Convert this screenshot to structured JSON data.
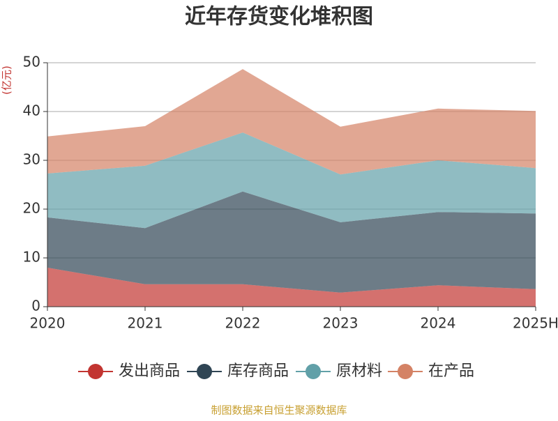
{
  "chart_data": {
    "type": "stacked-area",
    "title": "近年存货变化堆积图",
    "y_label": "(亿元)",
    "source": "制图数据来自恒生聚源数据库",
    "categories": [
      "2020",
      "2021",
      "2022",
      "2023",
      "2024",
      "2025H"
    ],
    "series": [
      {
        "name": "发出商品",
        "color": "#c23531",
        "values": [
          8.0,
          4.6,
          4.6,
          2.9,
          4.4,
          3.6
        ]
      },
      {
        "name": "库存商品",
        "color": "#2f4554",
        "values": [
          10.3,
          11.5,
          19.0,
          14.4,
          15.0,
          15.5
        ]
      },
      {
        "name": "原材料",
        "color": "#61a0a8",
        "values": [
          9.0,
          12.8,
          12.1,
          9.8,
          10.6,
          9.3
        ]
      },
      {
        "name": "在产品",
        "color": "#d48265",
        "values": [
          7.6,
          8.1,
          13.0,
          9.8,
          10.6,
          11.7
        ]
      }
    ],
    "ylim": [
      0,
      50
    ],
    "yticks": [
      0,
      10,
      20,
      30,
      40,
      50
    ],
    "grid": true
  }
}
